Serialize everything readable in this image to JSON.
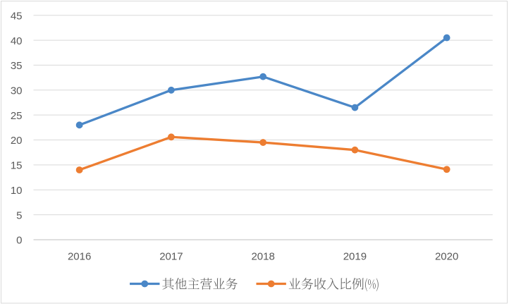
{
  "chart_data": {
    "type": "line",
    "title": "",
    "categories": [
      "2016",
      "2017",
      "2018",
      "2019",
      "2020"
    ],
    "series": [
      {
        "name": "其他主营业务",
        "color": "#4A87C7",
        "marker": "circle",
        "values": [
          23,
          30,
          32.7,
          26.5,
          40.5
        ]
      },
      {
        "name": "业务收入比例(%)",
        "color": "#ED7D31",
        "marker": "circle",
        "values": [
          14,
          20.6,
          19.5,
          18,
          14.1
        ]
      }
    ],
    "xlabel": "",
    "ylabel": "",
    "ylim": [
      0,
      45
    ],
    "yticks": [
      0,
      5,
      10,
      15,
      20,
      25,
      30,
      35,
      40,
      45
    ],
    "grid": true,
    "legend_position": "bottom-center",
    "colors": {
      "background": "#FFFFFF",
      "plot_background": "#FFFFFF",
      "gridline": "#D9D9D9",
      "axis_line": "#BFBFBF",
      "chart_border": "#D9D9D9",
      "tick_label": "#595959",
      "legend_text": "#595959"
    }
  }
}
